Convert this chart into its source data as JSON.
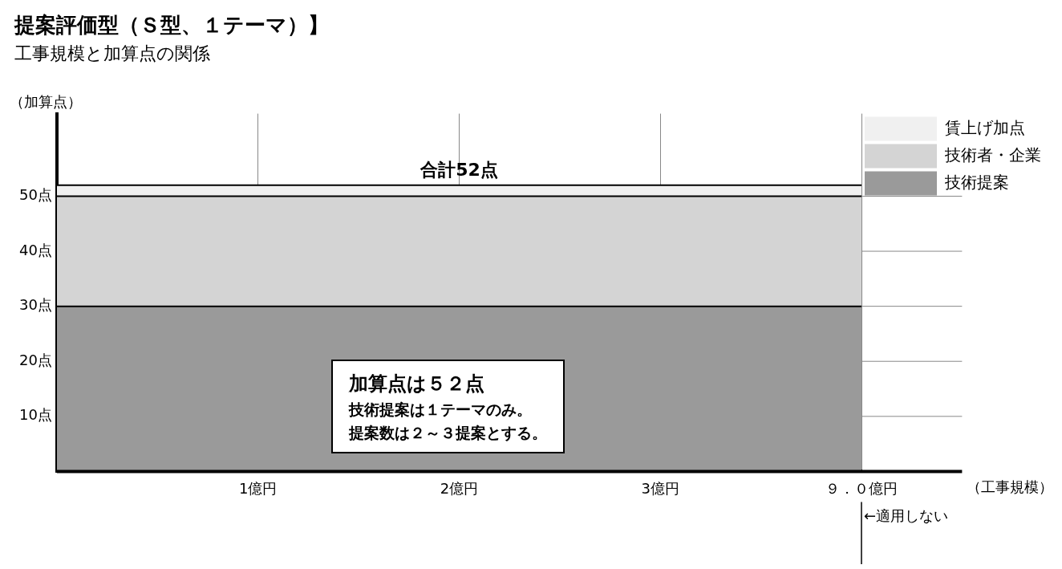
{
  "chart_data": {
    "type": "area",
    "title": "提案評価型（Ｓ型、１テーマ）】",
    "subtitle": "工事規模と加算点の関係",
    "ylabel": "（加算点）",
    "categories": [
      null,
      "1億円",
      "2億円",
      "3億円",
      "９．０億円"
    ],
    "stacked": true,
    "series": [
      {
        "name": "技術提案",
        "color": "#9a9a9a",
        "values": [
          30,
          30,
          30,
          30,
          30
        ]
      },
      {
        "name": "技術者・企業",
        "color": "#d4d4d4",
        "values": [
          20,
          20,
          20,
          20,
          20
        ]
      },
      {
        "name": "賃上げ加点",
        "color": "#f0f0f0",
        "values": [
          2,
          2,
          2,
          2,
          2
        ]
      }
    ],
    "ylim": [
      0,
      65
    ],
    "yticks": [
      {
        "value": 10,
        "label": "10点"
      },
      {
        "value": 20,
        "label": "20点"
      },
      {
        "value": 30,
        "label": "30点"
      },
      {
        "value": 40,
        "label": "40点"
      },
      {
        "value": 50,
        "label": "50点"
      }
    ],
    "grid": true,
    "legend": "top right",
    "ref_lines": [
      {
        "axis": "x",
        "value": "９．０億円",
        "label": "←適用しない"
      }
    ],
    "annotations": [
      {
        "text": "合計52点",
        "x": "2億円",
        "y": 52
      },
      "（工事規模）",
      "加算点は５２点",
      "技術提案は１テーマのみ。",
      "提案数は２～３提案とする。"
    ]
  }
}
